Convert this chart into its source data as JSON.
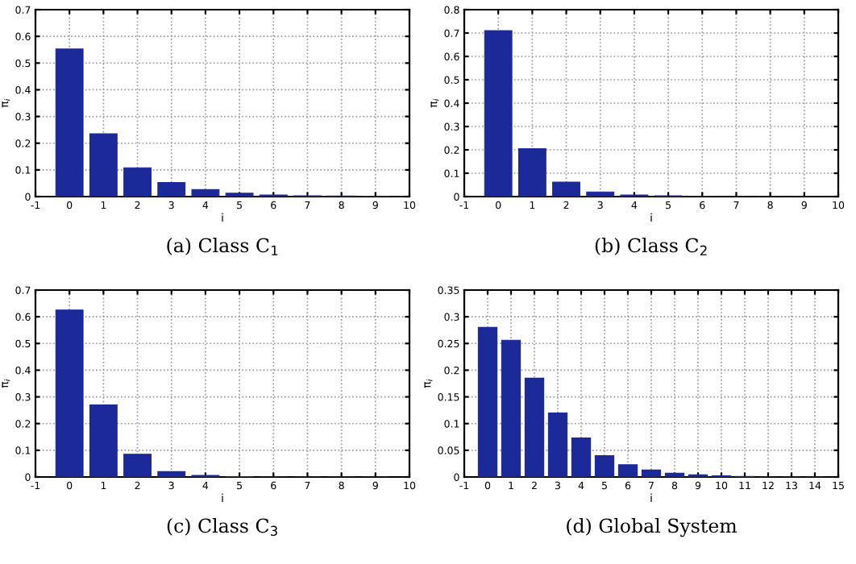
{
  "chart_data": [
    {
      "type": "bar",
      "title": "(a) Class C$_{1}$",
      "xlabel": "i",
      "ylabel": "π$_{i}$",
      "x": [
        0,
        1,
        2,
        3,
        4,
        5,
        6,
        7,
        8,
        9
      ],
      "values": [
        0.553,
        0.235,
        0.108,
        0.053,
        0.026,
        0.013,
        0.006,
        0.003,
        0.002,
        0.001
      ],
      "color": "#1c2a99",
      "xlim": [
        -1,
        10
      ],
      "xticks": [
        -1,
        0,
        1,
        2,
        3,
        4,
        5,
        6,
        7,
        8,
        9,
        10
      ],
      "ylim": [
        0,
        0.7
      ],
      "yticks": [
        0,
        0.1,
        0.2,
        0.3,
        0.4,
        0.5,
        0.6,
        0.7
      ],
      "grid": true
    },
    {
      "type": "bar",
      "title": "(b) Class C$_{2}$",
      "xlabel": "i",
      "ylabel": "π$_{i}$",
      "x": [
        0,
        1,
        2,
        3,
        4,
        5,
        6,
        7,
        8,
        9
      ],
      "values": [
        0.71,
        0.205,
        0.062,
        0.02,
        0.007,
        0.003,
        0.001,
        0,
        0,
        0
      ],
      "color": "#1c2a99",
      "xlim": [
        -1,
        10
      ],
      "xticks": [
        -1,
        0,
        1,
        2,
        3,
        4,
        5,
        6,
        7,
        8,
        9,
        10
      ],
      "ylim": [
        0,
        0.8
      ],
      "yticks": [
        0,
        0.1,
        0.2,
        0.3,
        0.4,
        0.5,
        0.6,
        0.7,
        0.8
      ],
      "grid": true
    },
    {
      "type": "bar",
      "title": "(c) Class C$_{3}$",
      "xlabel": "i",
      "ylabel": "π$_{i}$",
      "x": [
        0,
        1,
        2,
        3,
        4,
        5,
        6,
        7,
        8,
        9
      ],
      "values": [
        0.625,
        0.27,
        0.085,
        0.02,
        0.006,
        0.001,
        0,
        0,
        0,
        0
      ],
      "color": "#1c2a99",
      "xlim": [
        -1,
        10
      ],
      "xticks": [
        -1,
        0,
        1,
        2,
        3,
        4,
        5,
        6,
        7,
        8,
        9,
        10
      ],
      "ylim": [
        0,
        0.7
      ],
      "yticks": [
        0,
        0.1,
        0.2,
        0.3,
        0.4,
        0.5,
        0.6,
        0.7
      ],
      "grid": true
    },
    {
      "type": "bar",
      "title": "(d) Global System",
      "xlabel": "i",
      "ylabel": "π$_{i}$",
      "x": [
        0,
        1,
        2,
        3,
        4,
        5,
        6,
        7,
        8,
        9,
        10,
        11,
        12,
        13,
        14
      ],
      "values": [
        0.28,
        0.256,
        0.185,
        0.12,
        0.073,
        0.04,
        0.023,
        0.013,
        0.007,
        0.004,
        0.002,
        0.001,
        0,
        0,
        0
      ],
      "color": "#1c2a99",
      "xlim": [
        -1,
        15
      ],
      "xticks": [
        -1,
        0,
        1,
        2,
        3,
        4,
        5,
        6,
        7,
        8,
        9,
        10,
        11,
        12,
        13,
        14,
        15
      ],
      "ylim": [
        0,
        0.35
      ],
      "yticks": [
        0,
        0.05,
        0.1,
        0.15,
        0.2,
        0.25,
        0.3,
        0.35
      ],
      "grid": true
    }
  ]
}
